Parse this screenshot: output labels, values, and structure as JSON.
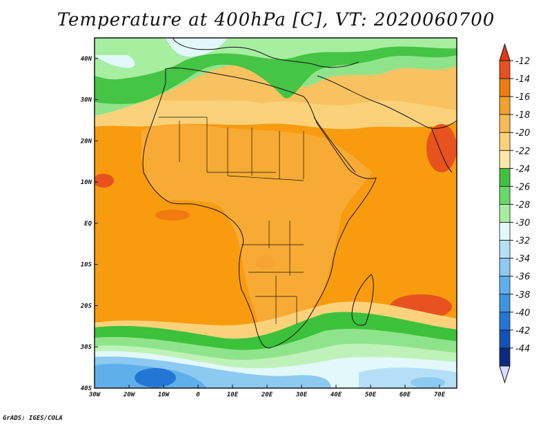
{
  "title": "Temperature at 400hPa [C], VT: 2020060700",
  "footer": "GrADS: IGES/COLA",
  "map": {
    "projection": "lat-lon",
    "lon_range": [
      -30,
      75
    ],
    "lat_range": [
      -40,
      45
    ],
    "lon_ticks": [
      {
        "value": -30,
        "label": "30W"
      },
      {
        "value": -20,
        "label": "20W"
      },
      {
        "value": -10,
        "label": "10W"
      },
      {
        "value": 0,
        "label": "0"
      },
      {
        "value": 10,
        "label": "10E"
      },
      {
        "value": 20,
        "label": "20E"
      },
      {
        "value": 30,
        "label": "30E"
      },
      {
        "value": 40,
        "label": "40E"
      },
      {
        "value": 50,
        "label": "50E"
      },
      {
        "value": 60,
        "label": "60E"
      },
      {
        "value": 70,
        "label": "70E"
      }
    ],
    "lat_ticks": [
      {
        "value": 40,
        "label": "40N"
      },
      {
        "value": 30,
        "label": "30N"
      },
      {
        "value": 20,
        "label": "20N"
      },
      {
        "value": 10,
        "label": "10N"
      },
      {
        "value": 0,
        "label": "EQ"
      },
      {
        "value": -10,
        "label": "10S"
      },
      {
        "value": -20,
        "label": "20S"
      },
      {
        "value": -30,
        "label": "30S"
      },
      {
        "value": -40,
        "label": "40S"
      }
    ]
  },
  "colorbar": {
    "levels": [
      -12,
      -14,
      -16,
      -18,
      -20,
      -22,
      -24,
      -26,
      -28,
      -30,
      -32,
      -34,
      -36,
      -38,
      -40,
      -42,
      -44
    ],
    "colors": [
      "#e8521e",
      "#f07b10",
      "#f5a02d",
      "#f8bc55",
      "#fbd27a",
      "#fde9a6",
      "#3fc13f",
      "#69d96a",
      "#a7eea1",
      "#e2f8fa",
      "#b4dff6",
      "#8ccaf2",
      "#5fb0ea",
      "#3d95e1",
      "#2476d4",
      "#1552b8",
      "#0d2a7e"
    ],
    "over_color": "#e23a16",
    "under_color": "#dcdcff"
  },
  "colors": {
    "sea_warm": "#f89b0f",
    "land_mid": "#f7ad39",
    "land_north": "#f9c261",
    "north_green": "#45c445",
    "subtropic_green": "#8fe48b",
    "southern_green": "#3cc13b",
    "southern_light": "#bff2b8",
    "southern_blue": "#6fbdf0",
    "deep_blue": "#2b6fd6"
  }
}
